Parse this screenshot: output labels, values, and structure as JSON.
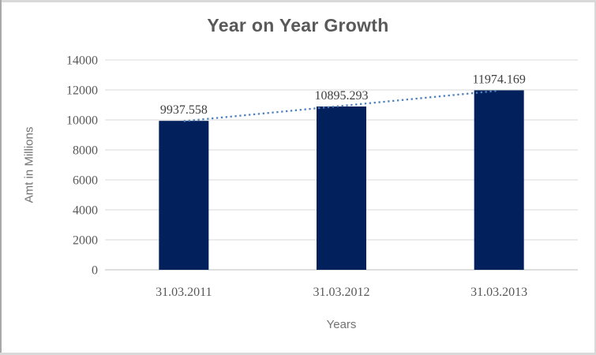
{
  "chart_data": {
    "type": "bar",
    "title": "Year on Year Growth",
    "categories": [
      "31.03.2011",
      "31.03.2012",
      "31.03.2013"
    ],
    "values": [
      9937.558,
      10895.293,
      11974.169
    ],
    "data_labels": [
      "9937.558",
      "10895.293",
      "11974.169"
    ],
    "xlabel": "Years",
    "ylabel": "Amt in Millions",
    "ylim": [
      0,
      14000
    ],
    "yticks": [
      0,
      2000,
      4000,
      6000,
      8000,
      10000,
      12000,
      14000
    ],
    "grid": true,
    "legend": "none",
    "bar_color": "#02215C",
    "gridline_color": "#D9D9D9",
    "axis_line_color": "#BFBFBF",
    "tick_label_color": "#595959",
    "data_label_color": "#404040",
    "title_color": "#595959",
    "axis_title_color": "#737373",
    "border_color": "#D9D9D9",
    "border_left_color": "#A9A9A9",
    "trendline": {
      "type": "linear",
      "style": "dotted",
      "color": "#4F81BD"
    }
  }
}
